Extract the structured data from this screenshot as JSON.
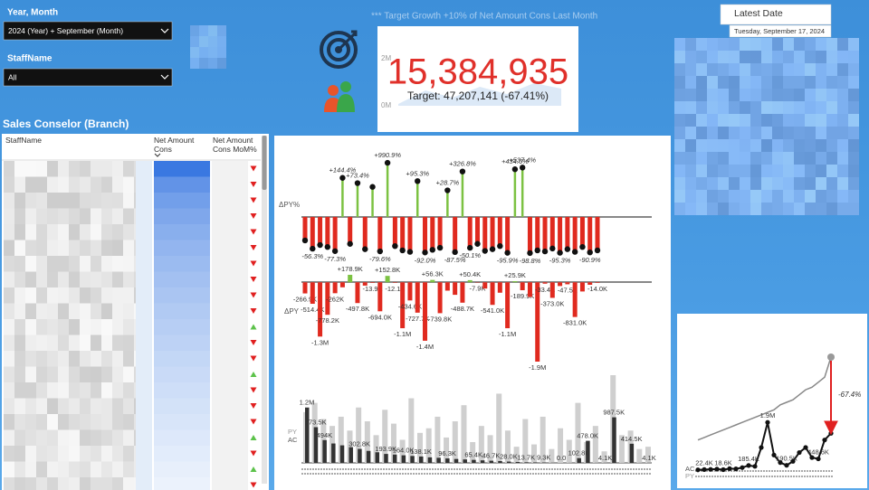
{
  "filters": [
    {
      "label": "Year, Month",
      "selected": "2024 (Year) + September (Month)"
    },
    {
      "label": "StaffName",
      "selected": "All"
    }
  ],
  "target_note": "*** Target Growth +10% of Net Amount Cons Last Month",
  "kpi": {
    "value": "15,384,935",
    "target": "Target: 47,207,141 (-67.41%)",
    "axis_labels": [
      "2M",
      "0M"
    ]
  },
  "latest_date": {
    "title": "Latest Date",
    "value": "Tuesday, September 17, 2024"
  },
  "table": {
    "title": "Sales Conselor (Branch)",
    "columns": [
      "StaffName",
      "Net Amount Cons",
      "Net Amount Cons MoM%"
    ],
    "rows": [
      {
        "trend": "down"
      },
      {
        "trend": "down"
      },
      {
        "trend": "down"
      },
      {
        "trend": "down"
      },
      {
        "trend": "down"
      },
      {
        "trend": "down"
      },
      {
        "trend": "down"
      },
      {
        "trend": "down"
      },
      {
        "trend": "down"
      },
      {
        "trend": "down"
      },
      {
        "trend": "up"
      },
      {
        "trend": "down"
      },
      {
        "trend": "down"
      },
      {
        "trend": "up"
      },
      {
        "trend": "down"
      },
      {
        "trend": "down"
      },
      {
        "trend": "down"
      },
      {
        "trend": "up"
      },
      {
        "trend": "down"
      },
      {
        "trend": "up"
      },
      {
        "trend": "down"
      }
    ]
  },
  "charts": {
    "delta_pct": {
      "axis_label": "ΔPY%",
      "scale": "symlog",
      "ylim": [
        -100,
        1000
      ],
      "bars": [
        {
          "value": -19
        },
        {
          "value": -56.3,
          "label": "-56.3%"
        },
        {
          "value": -35
        },
        {
          "value": -45
        },
        {
          "value": -77.3,
          "label": "-77.3%"
        },
        {
          "value": 144.4,
          "label": "+144.4%"
        },
        {
          "value": -30
        },
        {
          "value": 73.4,
          "label": "+73.4%"
        },
        {
          "value": -60
        },
        {
          "value": 45
        },
        {
          "value": -79.6,
          "label": "-79.6%"
        },
        {
          "value": 990.9,
          "label": "+990.9%"
        },
        {
          "value": -40
        },
        {
          "value": -70
        },
        {
          "value": -85
        },
        {
          "value": 95.3,
          "label": "+95.3%"
        },
        {
          "value": -92.0,
          "label": "-92.0%"
        },
        {
          "value": -65
        },
        {
          "value": -50
        },
        {
          "value": 28.7,
          "label": "+28.7%"
        },
        {
          "value": -87.5,
          "label": "-87.5%"
        },
        {
          "value": 326.8,
          "label": "+326.8%"
        },
        {
          "value": -50.1,
          "label": "-50.1%"
        },
        {
          "value": -30
        },
        {
          "value": -75
        },
        {
          "value": -60
        },
        {
          "value": -40
        },
        {
          "value": -95.9,
          "label": "-95.9%"
        },
        {
          "value": 434.6,
          "label": "+434.6%"
        },
        {
          "value": 537.4,
          "label": "+537.4%"
        },
        {
          "value": -98.8,
          "label": "-98.8%"
        },
        {
          "value": -70
        },
        {
          "value": -80
        },
        {
          "value": -55
        },
        {
          "value": -95.3,
          "label": "-95.3%"
        },
        {
          "value": -60
        },
        {
          "value": -85
        },
        {
          "value": -45
        },
        {
          "value": -90.9,
          "label": "-90.9%"
        },
        {
          "value": -70
        }
      ]
    },
    "delta_abs": {
      "axis_label": "ΔPY",
      "ylim": [
        -1900000,
        200000
      ],
      "bars": [
        {
          "value": -266900,
          "label": "-266.9K"
        },
        {
          "value": -514400,
          "label": "-514.4K"
        },
        {
          "value": -1300000,
          "label": "-1.3M"
        },
        {
          "value": -778200,
          "label": "-778.2K"
        },
        {
          "value": -262000,
          "label": "-262K"
        },
        {
          "value": -120000
        },
        {
          "value": 178900,
          "label": "+178.9K"
        },
        {
          "value": -497800,
          "label": "-497.8K"
        },
        {
          "value": -80000
        },
        {
          "value": -13900,
          "label": "-13.9K"
        },
        {
          "value": -694000,
          "label": "-694.0K"
        },
        {
          "value": 152800,
          "label": "+152.8K"
        },
        {
          "value": -12100,
          "label": "-12.1K"
        },
        {
          "value": -1100000,
          "label": "-1.1M"
        },
        {
          "value": -434600,
          "label": "-434.6K"
        },
        {
          "value": -727700,
          "label": "-727.7K"
        },
        {
          "value": -1400000,
          "label": "-1.4M"
        },
        {
          "value": 56300,
          "label": "+56.3K"
        },
        {
          "value": -739800,
          "label": "-739.8K"
        },
        {
          "value": -200000
        },
        {
          "value": -300000
        },
        {
          "value": -488700,
          "label": "-488.7K"
        },
        {
          "value": 50400,
          "label": "+50.4K"
        },
        {
          "value": -7900,
          "label": "-7.9K"
        },
        {
          "value": -150000
        },
        {
          "value": -541000,
          "label": "-541.0K"
        },
        {
          "value": -250000
        },
        {
          "value": -1100000,
          "label": "-1.1M"
        },
        {
          "value": 25900,
          "label": "+25.9K"
        },
        {
          "value": -189900,
          "label": "-189.9K"
        },
        {
          "value": -350000
        },
        {
          "value": -1900000,
          "label": "-1.9M"
        },
        {
          "value": -33400,
          "label": "-33.4K"
        },
        {
          "value": -373000,
          "label": "-373.0K"
        },
        {
          "value": -90000
        },
        {
          "value": -47500,
          "label": "-47.5K"
        },
        {
          "value": -831000,
          "label": "-831.0K"
        },
        {
          "value": -220000
        },
        {
          "value": -60000
        },
        {
          "value": -14000,
          "label": "-14.0K"
        }
      ]
    },
    "ac_py": {
      "legend": [
        "PY",
        "AC"
      ],
      "ylim": [
        0,
        1900000
      ],
      "py": [
        1100000,
        1300000,
        950000,
        800000,
        1000000,
        700000,
        1200000,
        900000,
        600000,
        1150000,
        850000,
        500000,
        1400000,
        650000,
        750000,
        1000000,
        550000,
        900000,
        1250000,
        450000,
        800000,
        600000,
        1500000,
        700000,
        350000,
        950000,
        400000,
        1000000,
        300000,
        750000,
        500000,
        1300000,
        450000,
        800000,
        250000,
        1900000,
        600000,
        700000,
        300000,
        350000
      ],
      "ac": [
        {
          "value": 1200000,
          "label": "1.2M"
        },
        {
          "value": 773500,
          "label": "773.5K"
        },
        {
          "value": 494000,
          "label": "494K"
        },
        {
          "value": 420000
        },
        {
          "value": 380000
        },
        {
          "value": 340000
        },
        {
          "value": 302800,
          "label": "302.8K"
        },
        {
          "value": 260000
        },
        {
          "value": 230000
        },
        {
          "value": 193900,
          "label": "193.9K"
        },
        {
          "value": 180000
        },
        {
          "value": 164000,
          "label": "164.0K"
        },
        {
          "value": 150000
        },
        {
          "value": 138100,
          "label": "138.1K"
        },
        {
          "value": 120000
        },
        {
          "value": 110000
        },
        {
          "value": 96300,
          "label": "96.3K"
        },
        {
          "value": 85000
        },
        {
          "value": 75000
        },
        {
          "value": 65400,
          "label": "65.4K"
        },
        {
          "value": 55000
        },
        {
          "value": 46700,
          "label": "46.7K"
        },
        {
          "value": 40000
        },
        {
          "value": 28000,
          "label": "28.0K"
        },
        {
          "value": 20000
        },
        {
          "value": 13700,
          "label": "13.7K"
        },
        {
          "value": 11000
        },
        {
          "value": 9300,
          "label": "9.3K"
        },
        {
          "value": 5000
        },
        {
          "value": 0,
          "label": "0.0"
        },
        {
          "value": 2000
        },
        {
          "value": 102800,
          "label": "102.8K"
        },
        {
          "value": 478000,
          "label": "478.0K"
        },
        {
          "value": 3000
        },
        {
          "value": 4100,
          "label": "4.1K"
        },
        {
          "value": 987500,
          "label": "987.5K"
        },
        {
          "value": 1000
        },
        {
          "value": 414500,
          "label": "414.5K"
        },
        {
          "value": 2000
        },
        {
          "value": 4100,
          "label": "4.1K"
        }
      ]
    },
    "trend": {
      "legend": [
        "AC",
        "PY"
      ],
      "annotation": "-67.4%",
      "ylim": [
        0,
        4500000
      ],
      "ac": [
        {
          "value": 10000
        },
        {
          "value": 22400,
          "label": "22.4K"
        },
        {
          "value": 30000
        },
        {
          "value": 40000
        },
        {
          "value": 18600,
          "label": "18.6K"
        },
        {
          "value": 60000
        },
        {
          "value": 50000
        },
        {
          "value": 100000
        },
        {
          "value": 185400,
          "label": "185.4K"
        },
        {
          "value": 150000
        },
        {
          "value": 900000
        },
        {
          "value": 1900000,
          "label": "1.9M"
        },
        {
          "value": 600000
        },
        {
          "value": 300000
        },
        {
          "value": 190500,
          "label": "190.5K"
        },
        {
          "value": 350000
        },
        {
          "value": 700000
        },
        {
          "value": 900000
        },
        {
          "value": 500000
        },
        {
          "value": 448600,
          "label": "448.6K"
        },
        {
          "value": 1200000
        },
        {
          "value": 1467000
        }
      ],
      "py": [
        1200000,
        1300000,
        1400000,
        1500000,
        1600000,
        1700000,
        1800000,
        1900000,
        2000000,
        2100000,
        2200000,
        2300000,
        2400000,
        2600000,
        2700000,
        2800000,
        3000000,
        3200000,
        3300000,
        3500000,
        3700000,
        4500000
      ]
    }
  }
}
